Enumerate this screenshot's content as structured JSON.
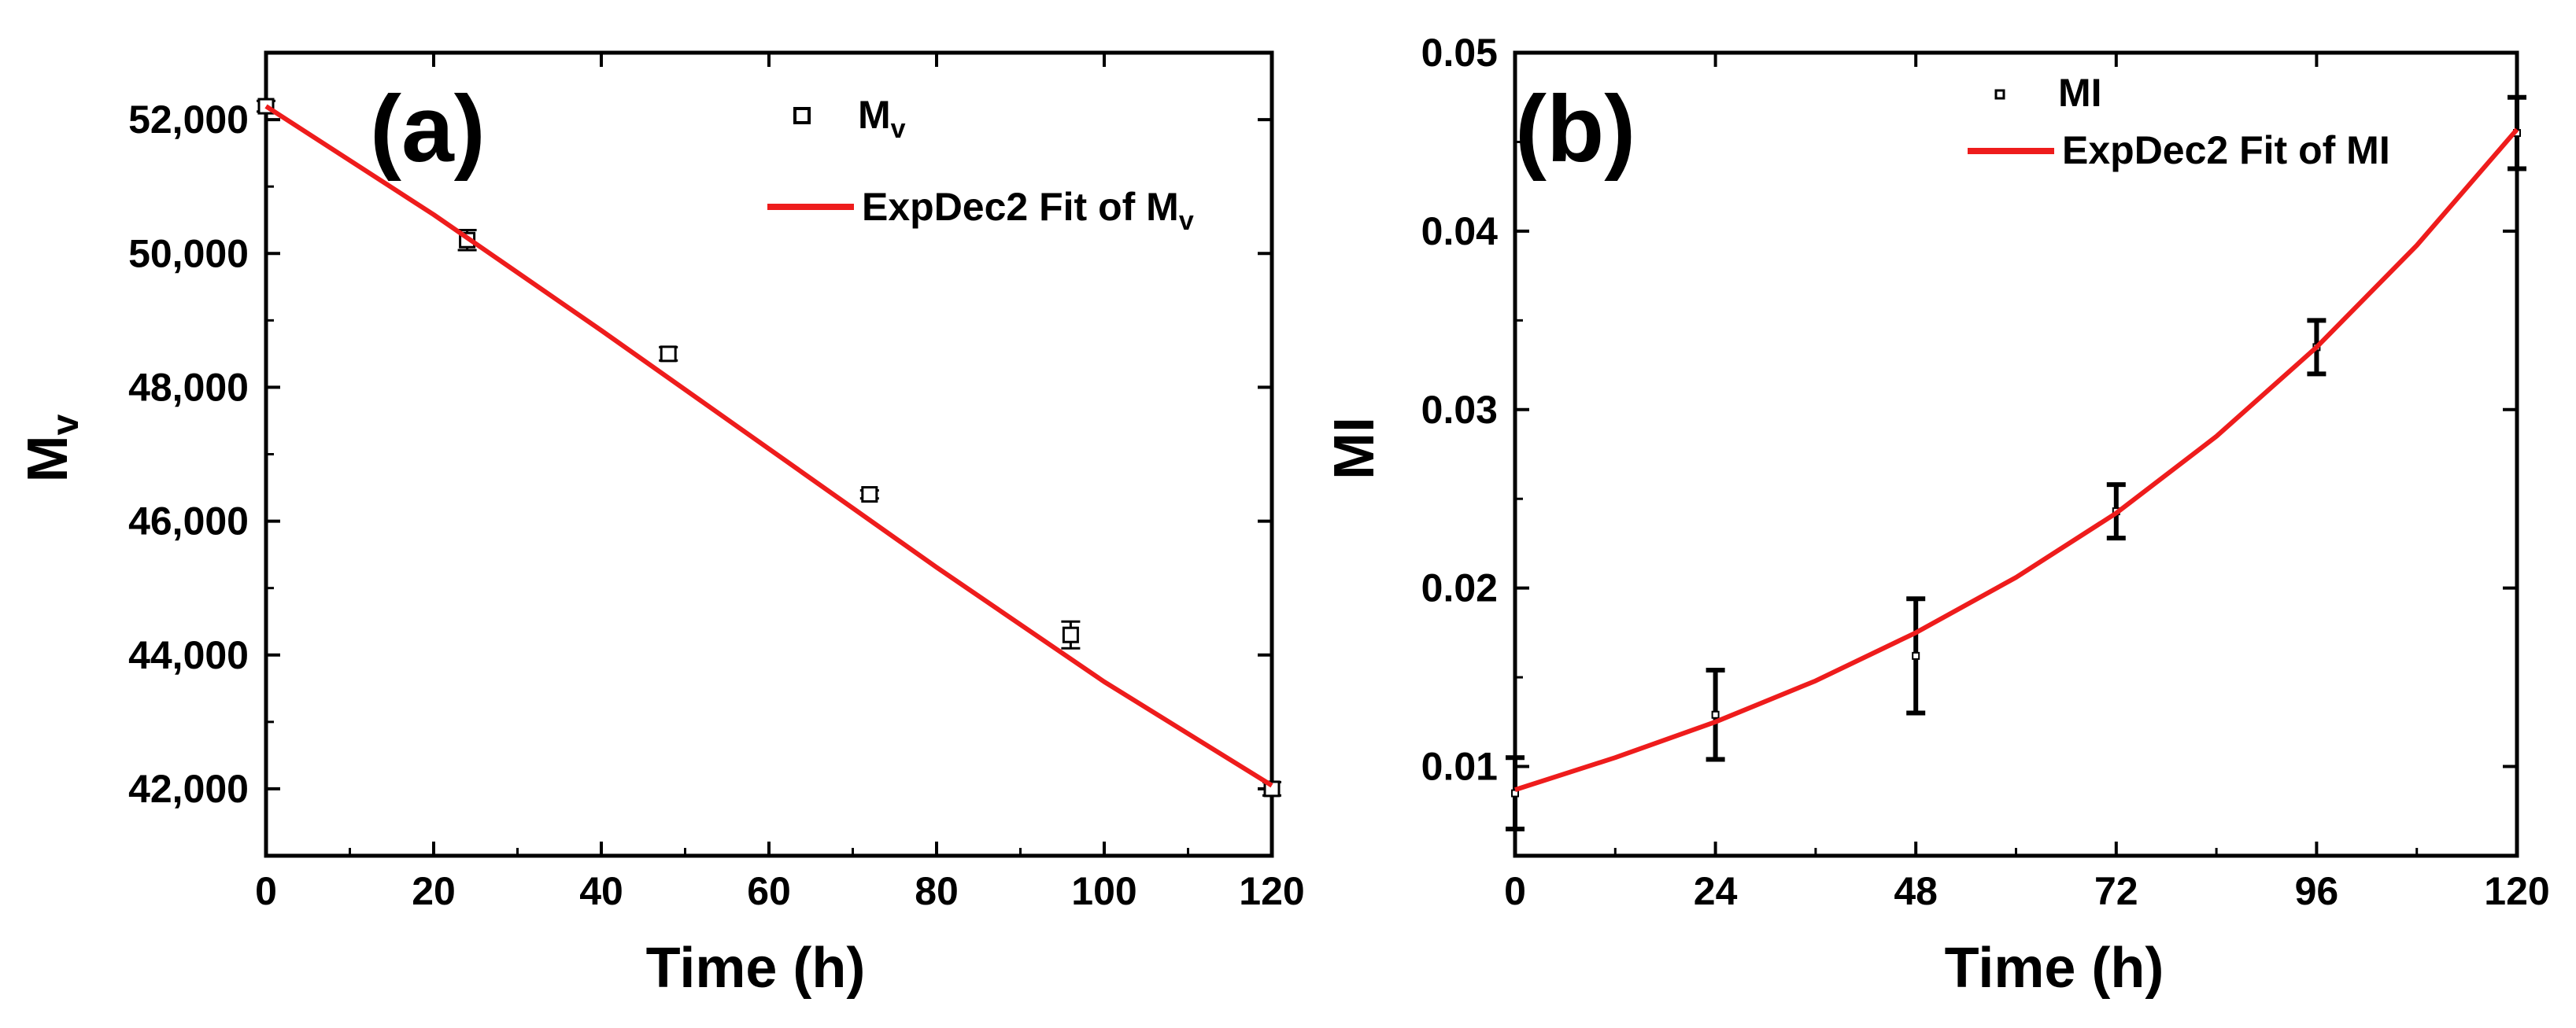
{
  "chart_data": [
    {
      "type": "scatter",
      "panel_label": "(a)",
      "xlabel": "Time (h)",
      "ylabel": {
        "base": "M",
        "sub": "v"
      },
      "xlim": [
        0,
        120
      ],
      "ylim": [
        41000,
        53000
      ],
      "xticks": [
        0,
        20,
        40,
        60,
        80,
        100,
        120
      ],
      "xtick_labels": [
        "0",
        "20",
        "40",
        "60",
        "80",
        "100",
        "120"
      ],
      "yticks": [
        42000,
        44000,
        46000,
        48000,
        50000,
        52000
      ],
      "ytick_labels": [
        "42,000",
        "44,000",
        "46,000",
        "48,000",
        "50,000",
        "52,000"
      ],
      "legend_position": "top-right",
      "series": [
        {
          "name": "Mv",
          "legend": {
            "base": "M",
            "sub": "v"
          },
          "kind": "points",
          "marker": "open-square",
          "x": [
            0,
            24,
            48,
            72,
            96,
            120
          ],
          "y": [
            52200,
            50200,
            48500,
            46400,
            44300,
            42000
          ],
          "err": [
            80,
            150,
            100,
            60,
            200,
            100
          ]
        },
        {
          "name": "ExpDec2 Fit of Mv",
          "legend": {
            "base": "ExpDec2 Fit of M",
            "sub": "v"
          },
          "kind": "line",
          "color": "#ee1c1c",
          "x": [
            0,
            20,
            40,
            60,
            80,
            100,
            120
          ],
          "y": [
            52200,
            50580,
            48850,
            47080,
            45310,
            43600,
            42050
          ]
        }
      ]
    },
    {
      "type": "scatter",
      "panel_label": "(b)",
      "xlabel": "Time (h)",
      "ylabel": "MI",
      "xlim": [
        0,
        120
      ],
      "ylim": [
        0.005,
        0.05
      ],
      "xticks": [
        0,
        24,
        48,
        72,
        96,
        120
      ],
      "xtick_labels": [
        "0",
        "24",
        "48",
        "72",
        "96",
        "120"
      ],
      "yticks": [
        0.01,
        0.02,
        0.03,
        0.04,
        0.05
      ],
      "ytick_labels": [
        "0.01",
        "0.02",
        "0.03",
        "0.04",
        "0.05"
      ],
      "legend_position": "top-right",
      "series": [
        {
          "name": "MI",
          "legend": "MI",
          "kind": "points",
          "marker": "open-square-small",
          "x": [
            0,
            24,
            48,
            72,
            96,
            120
          ],
          "y": [
            0.0085,
            0.0129,
            0.0162,
            0.0243,
            0.0335,
            0.0455
          ],
          "err": [
            0.002,
            0.0025,
            0.0032,
            0.0015,
            0.0015,
            0.002
          ]
        },
        {
          "name": "ExpDec2 Fit of MI",
          "legend": "ExpDec2 Fit of MI",
          "kind": "line",
          "color": "#ee1c1c",
          "x": [
            0,
            12,
            24,
            36,
            48,
            60,
            72,
            84,
            96,
            108,
            120
          ],
          "y": [
            0.0087,
            0.0105,
            0.0125,
            0.0148,
            0.0175,
            0.0206,
            0.0242,
            0.0285,
            0.0335,
            0.0392,
            0.0457
          ]
        }
      ]
    }
  ]
}
